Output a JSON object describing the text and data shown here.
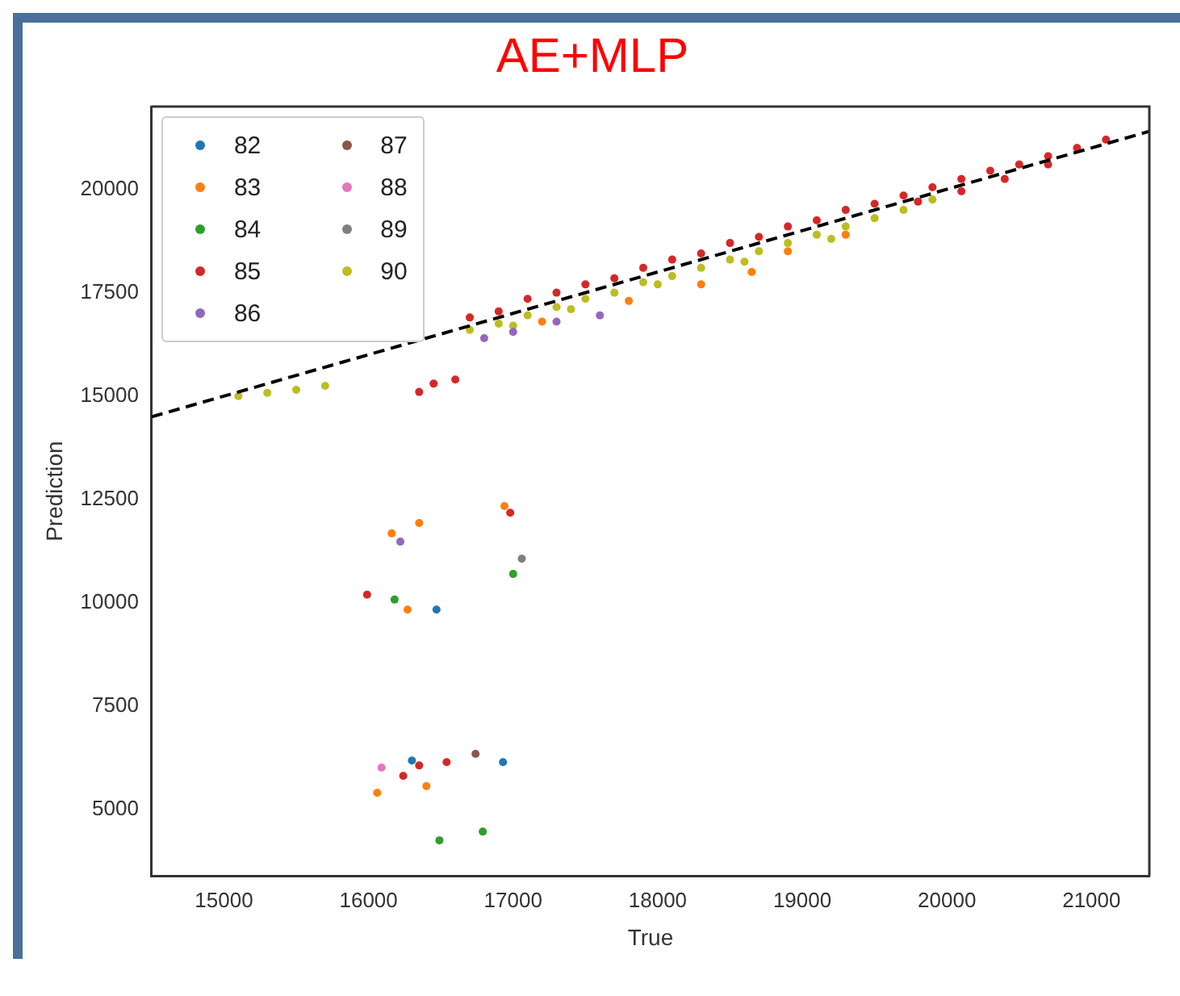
{
  "chart_data": {
    "type": "scatter",
    "title": "AE+MLP",
    "xlabel": "True",
    "ylabel": "Prediction",
    "xlim": [
      14500,
      21400
    ],
    "ylim": [
      3400,
      22000
    ],
    "xticks": [
      15000,
      16000,
      17000,
      18000,
      19000,
      20000,
      21000
    ],
    "yticks": [
      5000,
      7500,
      10000,
      12500,
      15000,
      17500,
      20000
    ],
    "grid": false,
    "legend": "top left",
    "marker": "circle",
    "series": [
      {
        "name": "82",
        "color": "#1f77b4",
        "x": [
          16470,
          16300,
          16930
        ],
        "values": [
          9840,
          6190,
          6150
        ]
      },
      {
        "name": "83",
        "color": "#ff7f0e",
        "x": [
          16270,
          16160,
          16350,
          16940,
          16060,
          16400,
          17200,
          17800,
          18300,
          18650,
          19300,
          18900
        ],
        "values": [
          9840,
          11680,
          11930,
          12340,
          5410,
          5570,
          16800,
          17300,
          17700,
          18000,
          18900,
          18500
        ]
      },
      {
        "name": "84",
        "color": "#2ca02c",
        "x": [
          16180,
          17000,
          16490,
          16790
        ],
        "values": [
          10080,
          10700,
          4260,
          4470
        ]
      },
      {
        "name": "85",
        "color": "#d62728",
        "x": [
          15990,
          16980,
          16240,
          16350,
          16540,
          16350,
          16450,
          16600,
          16700,
          16900,
          17100,
          17300,
          17500,
          17700,
          17900,
          18100,
          18300,
          18500,
          18700,
          18900,
          19100,
          19300,
          19500,
          19700,
          19900,
          20100,
          20300,
          20500,
          20700,
          20900,
          21100,
          20100,
          20400,
          20700,
          19800
        ],
        "values": [
          10200,
          12180,
          5820,
          6070,
          6150,
          15100,
          15300,
          15400,
          16900,
          17050,
          17350,
          17500,
          17700,
          17850,
          18100,
          18300,
          18450,
          18700,
          18850,
          19100,
          19250,
          19500,
          19650,
          19850,
          20050,
          20250,
          20450,
          20600,
          20800,
          21000,
          21200,
          19950,
          20250,
          20600,
          19700
        ]
      },
      {
        "name": "86",
        "color": "#9467bd",
        "x": [
          16220,
          16800,
          17000,
          17300,
          17600
        ],
        "values": [
          11480,
          16400,
          16550,
          16800,
          16950
        ]
      },
      {
        "name": "87",
        "color": "#8c564b",
        "x": [
          16740
        ],
        "values": [
          6350
        ]
      },
      {
        "name": "88",
        "color": "#e377c2",
        "x": [
          16090
        ],
        "values": [
          6020
        ]
      },
      {
        "name": "89",
        "color": "#7f7f7f",
        "x": [
          17060
        ],
        "values": [
          11070
        ]
      },
      {
        "name": "90",
        "color": "#bcbd22",
        "x": [
          15100,
          15300,
          15500,
          15700,
          16700,
          16900,
          17100,
          17300,
          17500,
          17700,
          17900,
          18100,
          18300,
          18500,
          18700,
          18900,
          19100,
          19300,
          19500,
          19700,
          19900,
          17000,
          17400,
          18000,
          18600,
          19200
        ],
        "values": [
          15000,
          15080,
          15150,
          15250,
          16600,
          16750,
          16950,
          17150,
          17350,
          17500,
          17750,
          17900,
          18100,
          18300,
          18500,
          18700,
          18900,
          19100,
          19300,
          19500,
          19750,
          16700,
          17100,
          17700,
          18250,
          18800
        ]
      },
      {
        "type": "line",
        "color": "#000000",
        "line_style": "dashed",
        "marker": "none",
        "x": [
          14500,
          21400
        ],
        "values": [
          14500,
          21400
        ]
      }
    ]
  }
}
